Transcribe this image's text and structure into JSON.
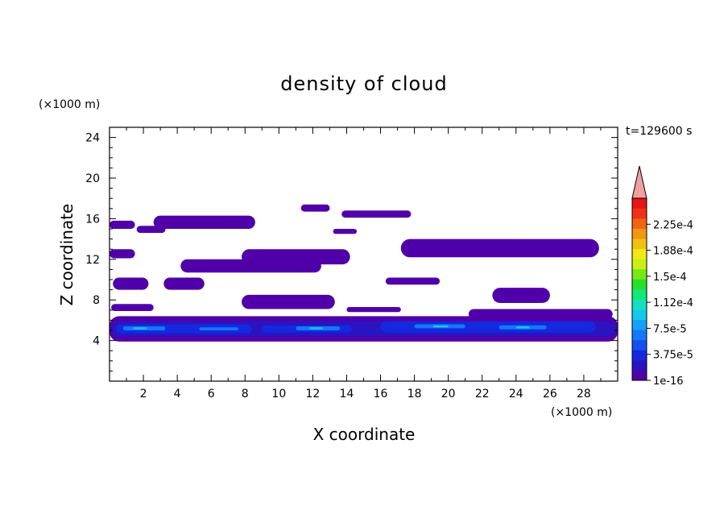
{
  "chart_data": {
    "type": "heatmap",
    "title": "density of cloud",
    "xlabel": "X coordinate",
    "ylabel": "Z coordinate",
    "x_unit": "(×1000 m)",
    "y_unit": "(×1000 m)",
    "time_label": "t=129600 s",
    "xlim": [
      0,
      30
    ],
    "ylim": [
      0,
      25
    ],
    "x_ticks": [
      "2",
      "4",
      "6",
      "8",
      "10",
      "12",
      "14",
      "16",
      "18",
      "20",
      "22",
      "24",
      "26",
      "28"
    ],
    "y_ticks": [
      "4",
      "8",
      "12",
      "16",
      "20",
      "24"
    ],
    "colorbar": {
      "labels": [
        "1e-16",
        "3.75e-5",
        "7.5e-5",
        "1.12e-4",
        "1.5e-4",
        "1.88e-4",
        "2.25e-4"
      ],
      "colors": [
        "#5000a8",
        "#2a14c0",
        "#1428e0",
        "#1450f0",
        "#1478f8",
        "#14a0f8",
        "#14c8e8",
        "#14e0c0",
        "#14e878",
        "#28e028",
        "#78e814",
        "#c8f014",
        "#f0e814",
        "#f0c014",
        "#f09614",
        "#f06414",
        "#f03214",
        "#e61414"
      ],
      "extend_color": "#f0a0a0"
    },
    "levels": [
      {
        "level": "1e-16",
        "color": "#5000a8",
        "regions": [
          {
            "x": [
              0,
              30
            ],
            "z": [
              3.9,
              6.4
            ]
          },
          {
            "x": [
              0.1,
              2.6
            ],
            "z": [
              6.9,
              7.6
            ]
          },
          {
            "x": [
              0.2,
              2.3
            ],
            "z": [
              9.0,
              10.2
            ]
          },
          {
            "x": [
              0,
              1.5
            ],
            "z": [
              12.1,
              13.0
            ]
          },
          {
            "x": [
              0,
              1.5
            ],
            "z": [
              15.0,
              15.8
            ]
          },
          {
            "x": [
              1.6,
              3.3
            ],
            "z": [
              14.6,
              15.3
            ]
          },
          {
            "x": [
              2.6,
              8.6
            ],
            "z": [
              15.0,
              16.3
            ]
          },
          {
            "x": [
              3.2,
              5.6
            ],
            "z": [
              9.0,
              10.2
            ]
          },
          {
            "x": [
              4.2,
              12.5
            ],
            "z": [
              10.7,
              12.0
            ]
          },
          {
            "x": [
              7.8,
              14.2
            ],
            "z": [
              11.5,
              13.0
            ]
          },
          {
            "x": [
              7.8,
              13.3
            ],
            "z": [
              7.1,
              8.5
            ]
          },
          {
            "x": [
              11.3,
              13.0
            ],
            "z": [
              16.7,
              17.4
            ]
          },
          {
            "x": [
              13.2,
              14.6
            ],
            "z": [
              14.5,
              15.0
            ]
          },
          {
            "x": [
              13.7,
              17.8
            ],
            "z": [
              16.1,
              16.8
            ]
          },
          {
            "x": [
              17.2,
              28.9
            ],
            "z": [
              12.2,
              14.0
            ]
          },
          {
            "x": [
              16.3,
              19.5
            ],
            "z": [
              9.5,
              10.2
            ]
          },
          {
            "x": [
              22.6,
              26.0
            ],
            "z": [
              7.7,
              9.2
            ]
          },
          {
            "x": [
              21.2,
              29.7
            ],
            "z": [
              6.1,
              7.1
            ]
          },
          {
            "x": [
              14.0,
              17.2
            ],
            "z": [
              6.8,
              7.3
            ]
          }
        ]
      },
      {
        "level": "3.75e-5",
        "color": "#2a14c0",
        "regions": [
          {
            "x": [
              0.1,
              29.9
            ],
            "z": [
              4.4,
              5.9
            ]
          }
        ]
      },
      {
        "level": "7.5e-5",
        "color": "#1428e0",
        "regions": [
          {
            "x": [
              0.4,
              8.4
            ],
            "z": [
              4.7,
              5.6
            ]
          },
          {
            "x": [
              9.0,
              14.3
            ],
            "z": [
              4.8,
              5.5
            ]
          },
          {
            "x": [
              16.0,
              28.7
            ],
            "z": [
              4.8,
              5.9
            ]
          }
        ]
      },
      {
        "level": "1.12e-4",
        "color": "#1478f8",
        "regions": [
          {
            "x": [
              0.8,
              3.3
            ],
            "z": [
              5.0,
              5.4
            ]
          },
          {
            "x": [
              5.3,
              7.6
            ],
            "z": [
              5.0,
              5.3
            ]
          },
          {
            "x": [
              11.0,
              13.6
            ],
            "z": [
              5.0,
              5.4
            ]
          },
          {
            "x": [
              18.0,
              21.0
            ],
            "z": [
              5.2,
              5.6
            ]
          },
          {
            "x": [
              23.0,
              25.8
            ],
            "z": [
              5.1,
              5.5
            ]
          }
        ]
      },
      {
        "level": "1.5e-4",
        "color": "#14c8e8",
        "regions": [
          {
            "x": [
              1.4,
              2.2
            ],
            "z": [
              5.12,
              5.3
            ]
          },
          {
            "x": [
              11.8,
              12.6
            ],
            "z": [
              5.12,
              5.3
            ]
          },
          {
            "x": [
              19.1,
              20.0
            ],
            "z": [
              5.3,
              5.5
            ]
          },
          {
            "x": [
              24.0,
              24.8
            ],
            "z": [
              5.2,
              5.4
            ]
          }
        ]
      }
    ]
  }
}
